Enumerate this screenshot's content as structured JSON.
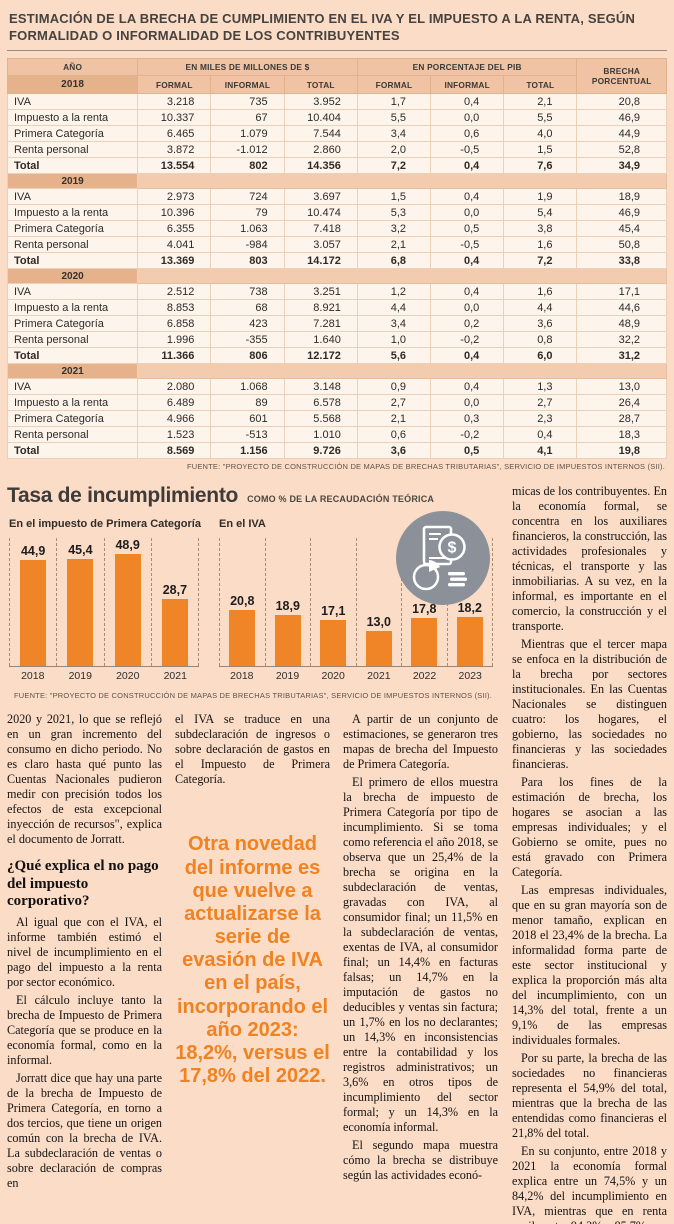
{
  "header": {
    "title": "ESTIMACIÓN DE LA BRECHA DE CUMPLIMIENTO EN EL IVA Y EL IMPUESTO A LA RENTA, SEGÚN FORMALIDAD O INFORMALIDAD DE LOS CONTRIBUYENTES"
  },
  "colors": {
    "background": "#fbdcc7",
    "accent_orange": "#ef8526",
    "icon_gray": "#8c9199"
  },
  "table": {
    "headers": {
      "ano": "AÑO",
      "miles": "EN MILES DE MILLONES DE $",
      "pib": "EN PORCENTAJE DEL PIB",
      "formal": "FORMAL",
      "informal": "INFORMAL",
      "total": "TOTAL",
      "brecha": "BRECHA PORCENTUAL"
    },
    "groups": [
      {
        "year": "2018",
        "rows": [
          {
            "label": "IVA",
            "bold": false,
            "values": [
              "3.218",
              "735",
              "3.952",
              "1,7",
              "0,4",
              "2,1",
              "20,8"
            ]
          },
          {
            "label": "Impuesto a la renta",
            "bold": false,
            "values": [
              "10.337",
              "67",
              "10.404",
              "5,5",
              "0,0",
              "5,5",
              "46,9"
            ]
          },
          {
            "label": "Primera Categoría",
            "bold": false,
            "values": [
              "6.465",
              "1.079",
              "7.544",
              "3,4",
              "0,6",
              "4,0",
              "44,9"
            ]
          },
          {
            "label": "Renta personal",
            "bold": false,
            "values": [
              "3.872",
              "-1.012",
              "2.860",
              "2,0",
              "-0,5",
              "1,5",
              "52,8"
            ]
          },
          {
            "label": "Total",
            "bold": true,
            "values": [
              "13.554",
              "802",
              "14.356",
              "7,2",
              "0,4",
              "7,6",
              "34,9"
            ]
          }
        ]
      },
      {
        "year": "2019",
        "rows": [
          {
            "label": "IVA",
            "bold": false,
            "values": [
              "2.973",
              "724",
              "3.697",
              "1,5",
              "0,4",
              "1,9",
              "18,9"
            ]
          },
          {
            "label": "Impuesto a la renta",
            "bold": false,
            "values": [
              "10.396",
              "79",
              "10.474",
              "5,3",
              "0,0",
              "5,4",
              "46,9"
            ]
          },
          {
            "label": "Primera Categoría",
            "bold": false,
            "values": [
              "6.355",
              "1.063",
              "7.418",
              "3,2",
              "0,5",
              "3,8",
              "45,4"
            ]
          },
          {
            "label": "Renta personal",
            "bold": false,
            "values": [
              "4.041",
              "-984",
              "3.057",
              "2,1",
              "-0,5",
              "1,6",
              "50,8"
            ]
          },
          {
            "label": "Total",
            "bold": true,
            "values": [
              "13.369",
              "803",
              "14.172",
              "6,8",
              "0,4",
              "7,2",
              "33,8"
            ]
          }
        ]
      },
      {
        "year": "2020",
        "rows": [
          {
            "label": "IVA",
            "bold": false,
            "values": [
              "2.512",
              "738",
              "3.251",
              "1,2",
              "0,4",
              "1,6",
              "17,1"
            ]
          },
          {
            "label": "Impuesto a la renta",
            "bold": false,
            "values": [
              "8.853",
              "68",
              "8.921",
              "4,4",
              "0,0",
              "4,4",
              "44,6"
            ]
          },
          {
            "label": "Primera Categoría",
            "bold": false,
            "values": [
              "6.858",
              "423",
              "7.281",
              "3,4",
              "0,2",
              "3,6",
              "48,9"
            ]
          },
          {
            "label": "Renta personal",
            "bold": false,
            "values": [
              "1.996",
              "-355",
              "1.640",
              "1,0",
              "-0,2",
              "0,8",
              "32,2"
            ]
          },
          {
            "label": "Total",
            "bold": true,
            "values": [
              "11.366",
              "806",
              "12.172",
              "5,6",
              "0,4",
              "6,0",
              "31,2"
            ]
          }
        ]
      },
      {
        "year": "2021",
        "rows": [
          {
            "label": "IVA",
            "bold": false,
            "values": [
              "2.080",
              "1.068",
              "3.148",
              "0,9",
              "0,4",
              "1,3",
              "13,0"
            ]
          },
          {
            "label": "Impuesto a la renta",
            "bold": false,
            "values": [
              "6.489",
              "89",
              "6.578",
              "2,7",
              "0,0",
              "2,7",
              "26,4"
            ]
          },
          {
            "label": "Primera Categoría",
            "bold": false,
            "values": [
              "4.966",
              "601",
              "5.568",
              "2,1",
              "0,3",
              "2,3",
              "28,7"
            ]
          },
          {
            "label": "Renta personal",
            "bold": false,
            "values": [
              "1.523",
              "-513",
              "1.010",
              "0,6",
              "-0,2",
              "0,4",
              "18,3"
            ]
          },
          {
            "label": "Total",
            "bold": true,
            "values": [
              "8.569",
              "1.156",
              "9.726",
              "3,6",
              "0,5",
              "4,1",
              "19,8"
            ]
          }
        ]
      }
    ],
    "source": "FUENTE: \"PROYECTO DE CONSTRUCCIÓN DE MAPAS DE BRECHAS TRIBUTARIAS\", SERVICIO DE IMPUESTOS INTERNOS (SII)."
  },
  "charts": {
    "title": "Tasa de incumplimiento",
    "subtitle": "COMO % DE LA RECAUDACIÓN TEÓRICA",
    "source": "FUENTE: \"PROYECTO DE CONSTRUCCIÓN DE MAPAS DE BRECHAS TRIBUTARIAS\", SERVICIO DE IMPUESTOS INTERNOS (SII).",
    "icon": "finance-report-pie-dollar-icon"
  },
  "chart_data": [
    {
      "type": "bar",
      "title": "En el impuesto de Primera Categoría",
      "categories": [
        "2018",
        "2019",
        "2020",
        "2021"
      ],
      "values": [
        44.9,
        45.4,
        48.9,
        28.7
      ],
      "labels": [
        "44,9",
        "45,4",
        "48,9",
        "28,7"
      ],
      "ylabel": "% de la recaudación teórica",
      "ylim": [
        0,
        50
      ],
      "grid": false,
      "legend": "none",
      "bar_color": "#ef8526"
    },
    {
      "type": "bar",
      "title": "En el IVA",
      "categories": [
        "2018",
        "2019",
        "2020",
        "2021",
        "2022",
        "2023"
      ],
      "values": [
        20.8,
        18.9,
        17.1,
        13.0,
        17.8,
        18.2
      ],
      "labels": [
        "20,8",
        "18,9",
        "17,1",
        "13,0",
        "17,8",
        "18,2"
      ],
      "ylabel": "% de la recaudación teórica",
      "ylim": [
        0,
        25
      ],
      "grid": false,
      "legend": "none",
      "bar_color": "#ef8526"
    }
  ],
  "article": {
    "columns": [
      {
        "blocks": [
          {
            "type": "p",
            "cont": true,
            "text": "2020 y 2021, lo que se reflejó en un gran incremento del consumo en dicho periodo. No es claro hasta qué punto las Cuentas Nacionales pudieron medir con precisión todos los efectos de esta excepcional inyección de recursos\", explica el documento de Jorratt."
          },
          {
            "type": "h2",
            "text": "¿Qué explica el no pago del impuesto corporativo?"
          },
          {
            "type": "p",
            "text": "Al igual que con el IVA, el informe también estimó el nivel de incumplimiento en el pago del impuesto a la renta por sector económico."
          },
          {
            "type": "p",
            "text": "El cálculo incluye tanto la brecha de Impuesto de Primera Categoría que se produce en la economía formal, como en la informal."
          },
          {
            "type": "p",
            "text": "Jorratt dice que hay una parte de la brecha de Impuesto de Primera Categoría, en torno a dos tercios, que tiene un origen común con la brecha de IVA. La subdeclaración de ventas o sobre declaración de compras en"
          }
        ]
      },
      {
        "blocks": [
          {
            "type": "p",
            "cont": true,
            "text": "el IVA se traduce en una subdeclaración de ingresos o sobre declaración de gastos en el Impuesto de Primera Categoría."
          },
          {
            "type": "quote",
            "text": "Otra novedad del informe es que vuelve a actualizarse la serie de evasión de IVA en el país, incorporando el año 2023: 18,2%, versus el 17,8% del 2022."
          }
        ]
      },
      {
        "blocks": [
          {
            "type": "p",
            "text": "A partir de un conjunto de estimaciones, se generaron tres mapas de brecha del Impuesto de Primera Categoría."
          },
          {
            "type": "p",
            "text": "El primero de ellos muestra la brecha de impuesto de Primera Categoría por tipo de incumplimiento. Si se toma como referencia el año 2018, se observa que un 25,4% de la brecha se origina en la subdeclaración de ventas, gravadas con IVA, al consumidor final; un 11,5% en la subdeclaración de ventas, exentas de IVA, al consumidor final; un 14,4% en facturas falsas; un 14,7% en la imputación de gastos no deducibles y ventas sin factura; un 1,7% en los no declarantes; un 14,3% en inconsistencias entre la contabilidad y los registros administrativos; un 3,6% en otros tipos de incumplimiento del sector formal; y un 14,3% en la economía informal."
          },
          {
            "type": "p",
            "text": "El segundo mapa muestra cómo la brecha se distribuye según las actividades econó-"
          }
        ]
      },
      {
        "blocks": [
          {
            "type": "p",
            "cont": true,
            "text": "micas de los contribuyentes. En la economía formal, se concentra en los auxiliares financieros, la construcción, las actividades profesionales y técnicas, el transporte y las inmobiliarias. A su vez, en la informal, es importante en el comercio, la construcción y el transporte."
          },
          {
            "type": "p",
            "text": "Mientras que el tercer mapa se enfoca en la distribución de la brecha por sectores institucionales. En las Cuentas Nacionales se distinguen cuatro: los hogares, el gobierno, las sociedades no financieras y las sociedades financieras."
          },
          {
            "type": "p",
            "text": "Para los fines de la estimación de brecha, los hogares se asocian a las empresas individuales; y el Gobierno se omite, pues no está gravado con Primera Categoría."
          },
          {
            "type": "p",
            "text": "Las empresas individuales, que en su gran mayoría son de menor tamaño, explican en 2018 el 23,4% de la brecha. La informalidad forma parte de este sector institucional y explica la proporción más alta del incumplimiento, con un 14,3% del total, frente a un 9,1% de las empresas individuales formales."
          },
          {
            "type": "p",
            "text": "Por su parte, la brecha de las sociedades no financieras representa el 54,9% del total, mientras que la brecha de las entendidas como financieras el 21,8% del total."
          },
          {
            "type": "p",
            "text": "En su conjunto, entre 2018 y 2021 la economía formal explica entre un 74,5% y un 84,2% del incumplimiento en IVA, mientras que en renta oscila entre 94,2% y 85,7%."
          }
        ]
      }
    ]
  }
}
